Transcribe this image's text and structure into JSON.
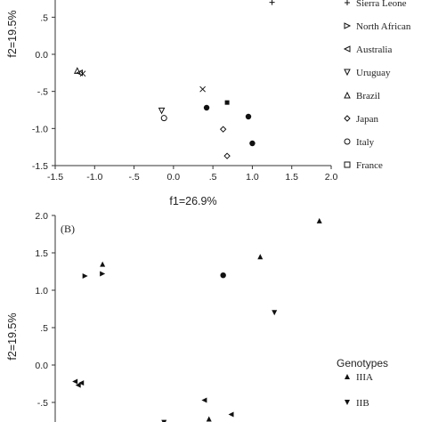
{
  "chart_data": [
    {
      "type": "scatter",
      "title": "",
      "xlabel": "f1=26.9%",
      "ylabel": "f2=19.5%",
      "xlim": [
        -1.5,
        2.0
      ],
      "ylim": [
        -1.5,
        0.9
      ],
      "x_ticks": [
        "-1.5",
        "-1.0",
        "-.5",
        "0.0",
        ".5",
        "1.0",
        "1.5",
        "2.0"
      ],
      "y_ticks": [
        "-1.5",
        "-1.0",
        "-.5",
        "0.0",
        ".5"
      ],
      "legend_position": "right",
      "legend": [
        {
          "name": "Sierra Leone",
          "marker": "plus"
        },
        {
          "name": "North African",
          "marker": "tri-right"
        },
        {
          "name": "Australia",
          "marker": "tri-left"
        },
        {
          "name": "Uruguay",
          "marker": "tri-down"
        },
        {
          "name": "Brazil",
          "marker": "tri-up"
        },
        {
          "name": "Japan",
          "marker": "diamond"
        },
        {
          "name": "Italy",
          "marker": "circle"
        },
        {
          "name": "France",
          "marker": "square"
        }
      ],
      "points": [
        {
          "x": 1.25,
          "y": 0.7,
          "marker": "plus"
        },
        {
          "x": -1.22,
          "y": -0.22,
          "marker": "tri-up"
        },
        {
          "x": -1.19,
          "y": -0.25,
          "marker": "tri-left"
        },
        {
          "x": -1.15,
          "y": -0.26,
          "marker": "x"
        },
        {
          "x": 0.37,
          "y": -0.47,
          "marker": "x"
        },
        {
          "x": -0.15,
          "y": -0.76,
          "marker": "tri-down"
        },
        {
          "x": -0.12,
          "y": -0.86,
          "marker": "circle"
        },
        {
          "x": 0.42,
          "y": -0.72,
          "marker": "dot"
        },
        {
          "x": 0.68,
          "y": -0.65,
          "marker": "square-filled"
        },
        {
          "x": 0.63,
          "y": -1.01,
          "marker": "diamond"
        },
        {
          "x": 0.68,
          "y": -1.37,
          "marker": "diamond"
        },
        {
          "x": 0.95,
          "y": -0.84,
          "marker": "dot"
        },
        {
          "x": 1.0,
          "y": -1.2,
          "marker": "dot"
        }
      ]
    },
    {
      "type": "scatter",
      "panel_label": "(B)",
      "title": "",
      "xlabel": "",
      "ylabel": "f2=19.5%",
      "xlim": [
        -1.5,
        2.0
      ],
      "ylim": [
        -0.7,
        2.0
      ],
      "y_ticks": [
        "2.0",
        "1.5",
        "1.0",
        ".5",
        "0.0",
        "-.5"
      ],
      "legend_title": "Genotypes",
      "legend": [
        {
          "name": "IIIA",
          "marker": "tri-up-filled"
        },
        {
          "name": "IIB",
          "marker": "tri-down-filled"
        }
      ],
      "points": [
        {
          "x": 1.85,
          "y": 1.93,
          "marker": "tri-up-filled"
        },
        {
          "x": 1.1,
          "y": 1.45,
          "marker": "tri-up-filled"
        },
        {
          "x": -0.9,
          "y": 1.35,
          "marker": "tri-up-filled"
        },
        {
          "x": -0.9,
          "y": 1.22,
          "marker": "tri-right-filled"
        },
        {
          "x": -1.12,
          "y": 1.19,
          "marker": "tri-right-filled"
        },
        {
          "x": 0.63,
          "y": 1.2,
          "marker": "dot"
        },
        {
          "x": 1.28,
          "y": 0.7,
          "marker": "tri-down-filled"
        },
        {
          "x": -1.25,
          "y": -0.22,
          "marker": "tri-left-filled"
        },
        {
          "x": -1.21,
          "y": -0.27,
          "marker": "tri-left-filled"
        },
        {
          "x": -1.17,
          "y": -0.24,
          "marker": "tri-left-filled"
        },
        {
          "x": 0.39,
          "y": -0.47,
          "marker": "tri-left-filled"
        },
        {
          "x": 0.73,
          "y": -0.66,
          "marker": "tri-left-filled"
        },
        {
          "x": 0.45,
          "y": -0.72,
          "marker": "tri-up-filled"
        },
        {
          "x": -0.12,
          "y": -0.77,
          "marker": "tri-down-filled"
        }
      ]
    }
  ]
}
